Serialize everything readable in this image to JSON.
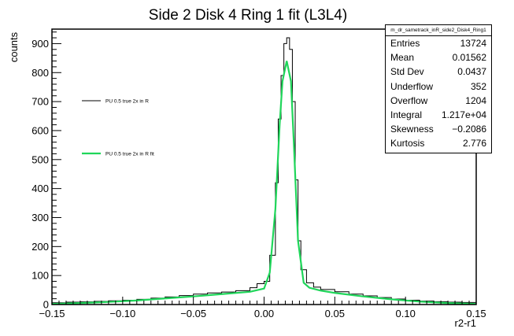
{
  "chart_data": {
    "type": "line",
    "title": "Side 2 Disk 4 Ring 1 fit (L3L4)",
    "xlabel": "r2-r1",
    "ylabel": "counts",
    "xlim": [
      -0.15,
      0.15
    ],
    "ylim": [
      0,
      950
    ],
    "x_ticks": [
      "−0.15",
      "−0.10",
      "−0.05",
      "0.00",
      "0.05",
      "0.10",
      "0.15"
    ],
    "x_tick_values": [
      -0.15,
      -0.1,
      -0.05,
      0.0,
      0.05,
      0.1,
      0.15
    ],
    "y_ticks": [
      "0",
      "100",
      "200",
      "300",
      "400",
      "500",
      "600",
      "700",
      "800",
      "900"
    ],
    "y_tick_values": [
      0,
      100,
      200,
      300,
      400,
      500,
      600,
      700,
      800,
      900
    ],
    "grid": false,
    "legend_placement": "left",
    "series": [
      {
        "name": "PU 0.5 true 2x in R",
        "style": "histogram",
        "color": "#000000",
        "x": [
          -0.15,
          -0.14,
          -0.13,
          -0.12,
          -0.11,
          -0.1,
          -0.09,
          -0.08,
          -0.07,
          -0.06,
          -0.05,
          -0.04,
          -0.03,
          -0.02,
          -0.01,
          -0.005,
          0.0,
          0.004,
          0.008,
          0.01,
          0.012,
          0.014,
          0.016,
          0.018,
          0.02,
          0.022,
          0.024,
          0.026,
          0.03,
          0.035,
          0.04,
          0.05,
          0.06,
          0.07,
          0.08,
          0.09,
          0.1,
          0.11,
          0.12,
          0.13,
          0.14,
          0.15
        ],
        "y": [
          6,
          8,
          9,
          11,
          13,
          15,
          18,
          22,
          26,
          31,
          36,
          40,
          43,
          48,
          58,
          72,
          80,
          170,
          420,
          640,
          790,
          900,
          920,
          880,
          700,
          430,
          220,
          120,
          75,
          60,
          52,
          44,
          36,
          30,
          24,
          19,
          15,
          12,
          10,
          8,
          7,
          6
        ]
      },
      {
        "name": "PU 0.5 true 2x in R fit",
        "style": "line",
        "color": "#1fd65a",
        "x": [
          -0.15,
          -0.13,
          -0.11,
          -0.09,
          -0.07,
          -0.05,
          -0.03,
          -0.01,
          0.0,
          0.004,
          0.008,
          0.011,
          0.013,
          0.016,
          0.019,
          0.021,
          0.024,
          0.028,
          0.032,
          0.04,
          0.05,
          0.07,
          0.09,
          0.11,
          0.13,
          0.15
        ],
        "y": [
          2,
          5,
          9,
          14,
          21,
          28,
          36,
          44,
          55,
          110,
          330,
          620,
          770,
          840,
          770,
          560,
          220,
          75,
          58,
          48,
          40,
          28,
          18,
          10,
          5,
          2
        ]
      }
    ]
  },
  "stats": {
    "name": "m_dr_sametrack_inR_side2_Disk4_Ring1",
    "rows": [
      {
        "label": "Entries",
        "value": "13724"
      },
      {
        "label": "Mean",
        "value": "0.01562"
      },
      {
        "label": "Std Dev",
        "value": "0.0437"
      },
      {
        "label": "Underflow",
        "value": "352"
      },
      {
        "label": "Overflow",
        "value": "1204"
      },
      {
        "label": "Integral",
        "value": "1.217e+04"
      },
      {
        "label": "Skewness",
        "value": "−0.2086"
      },
      {
        "label": "Kurtosis",
        "value": "2.776"
      }
    ]
  }
}
